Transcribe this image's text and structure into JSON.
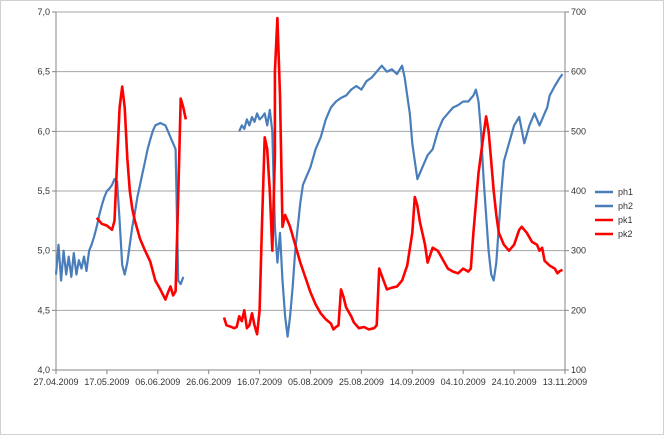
{
  "chart_data": {
    "type": "line",
    "title": "",
    "xlabel": "",
    "ylabel_left": "",
    "ylabel_right": "",
    "grid": "horizontal major gridlines",
    "legend_position": "right",
    "xlim": [
      "27.04.2009",
      "13.11.2009"
    ],
    "x_ticks": [
      "27.04.2009",
      "17.05.2009",
      "06.06.2009",
      "26.06.2009",
      "16.07.2009",
      "05.08.2009",
      "25.08.2009",
      "14.09.2009",
      "04.10.2009",
      "24.10.2009",
      "13.11.2009"
    ],
    "y_left": {
      "lim": [
        4.0,
        7.0
      ],
      "ticks": [
        "4,0",
        "4,5",
        "5,0",
        "5,5",
        "6,0",
        "6,5",
        "7,0"
      ]
    },
    "y_right": {
      "lim": [
        100,
        700
      ],
      "ticks": [
        "100",
        "200",
        "300",
        "400",
        "500",
        "600",
        "700"
      ]
    },
    "colors": {
      "ph": "#4a7ebb",
      "pk": "#ff0000",
      "grid": "#a6a6a6",
      "axis": "#868686"
    },
    "series": [
      {
        "name": "ph1",
        "axis": "left",
        "color": "#4a7ebb",
        "points": [
          [
            "27.04.2009",
            4.8
          ],
          [
            "28.04.2009",
            5.05
          ],
          [
            "29.04.2009",
            4.75
          ],
          [
            "30.04.2009",
            5.0
          ],
          [
            "01.05.2009",
            4.8
          ],
          [
            "02.05.2009",
            4.95
          ],
          [
            "03.05.2009",
            4.78
          ],
          [
            "04.05.2009",
            4.98
          ],
          [
            "05.05.2009",
            4.8
          ],
          [
            "06.05.2009",
            4.92
          ],
          [
            "07.05.2009",
            4.85
          ],
          [
            "08.05.2009",
            4.95
          ],
          [
            "09.05.2009",
            4.83
          ],
          [
            "10.05.2009",
            5.0
          ],
          [
            "11.05.2009",
            5.05
          ],
          [
            "12.05.2009",
            5.12
          ],
          [
            "13.05.2009",
            5.2
          ],
          [
            "14.05.2009",
            5.3
          ],
          [
            "15.05.2009",
            5.38
          ],
          [
            "16.05.2009",
            5.45
          ],
          [
            "17.05.2009",
            5.5
          ],
          [
            "18.05.2009",
            5.52
          ],
          [
            "19.05.2009",
            5.55
          ],
          [
            "20.05.2009",
            5.6
          ],
          [
            "21.05.2009",
            5.58
          ],
          [
            "22.05.2009",
            5.25
          ],
          [
            "23.05.2009",
            4.88
          ],
          [
            "24.05.2009",
            4.8
          ],
          [
            "25.05.2009",
            4.9
          ],
          [
            "26.05.2009",
            5.05
          ],
          [
            "27.05.2009",
            5.2
          ],
          [
            "28.05.2009",
            5.32
          ],
          [
            "29.05.2009",
            5.45
          ],
          [
            "30.05.2009",
            5.55
          ],
          [
            "31.05.2009",
            5.65
          ],
          [
            "01.06.2009",
            5.75
          ],
          [
            "02.06.2009",
            5.85
          ],
          [
            "03.06.2009",
            5.93
          ],
          [
            "04.06.2009",
            6.0
          ],
          [
            "05.06.2009",
            6.05
          ],
          [
            "07.06.2009",
            6.07
          ],
          [
            "09.06.2009",
            6.05
          ],
          [
            "10.06.2009",
            6.0
          ],
          [
            "11.06.2009",
            5.95
          ],
          [
            "12.06.2009",
            5.9
          ],
          [
            "13.06.2009",
            5.85
          ],
          [
            "14.06.2009",
            4.75
          ],
          [
            "15.06.2009",
            4.72
          ],
          [
            "16.06.2009",
            4.78
          ]
        ]
      },
      {
        "name": "ph2",
        "axis": "left",
        "color": "#4a7ebb",
        "points": [
          [
            "08.07.2009",
            6.0
          ],
          [
            "09.07.2009",
            6.05
          ],
          [
            "10.07.2009",
            6.02
          ],
          [
            "11.07.2009",
            6.1
          ],
          [
            "12.07.2009",
            6.05
          ],
          [
            "13.07.2009",
            6.12
          ],
          [
            "14.07.2009",
            6.08
          ],
          [
            "15.07.2009",
            6.15
          ],
          [
            "16.07.2009",
            6.1
          ],
          [
            "17.07.2009",
            6.12
          ],
          [
            "18.07.2009",
            6.15
          ],
          [
            "19.07.2009",
            6.05
          ],
          [
            "20.07.2009",
            6.18
          ],
          [
            "21.07.2009",
            6.0
          ],
          [
            "22.07.2009",
            5.2
          ],
          [
            "23.07.2009",
            4.9
          ],
          [
            "24.07.2009",
            5.15
          ],
          [
            "25.07.2009",
            4.75
          ],
          [
            "26.07.2009",
            4.45
          ],
          [
            "27.07.2009",
            4.28
          ],
          [
            "28.07.2009",
            4.45
          ],
          [
            "29.07.2009",
            4.7
          ],
          [
            "30.07.2009",
            5.0
          ],
          [
            "31.07.2009",
            5.2
          ],
          [
            "01.08.2009",
            5.4
          ],
          [
            "02.08.2009",
            5.55
          ],
          [
            "03.08.2009",
            5.6
          ],
          [
            "05.08.2009",
            5.7
          ],
          [
            "07.08.2009",
            5.85
          ],
          [
            "09.08.2009",
            5.95
          ],
          [
            "11.08.2009",
            6.1
          ],
          [
            "13.08.2009",
            6.2
          ],
          [
            "15.08.2009",
            6.25
          ],
          [
            "17.08.2009",
            6.28
          ],
          [
            "19.08.2009",
            6.3
          ],
          [
            "21.08.2009",
            6.35
          ],
          [
            "23.08.2009",
            6.38
          ],
          [
            "25.08.2009",
            6.35
          ],
          [
            "27.08.2009",
            6.42
          ],
          [
            "29.08.2009",
            6.45
          ],
          [
            "31.08.2009",
            6.5
          ],
          [
            "02.09.2009",
            6.55
          ],
          [
            "04.09.2009",
            6.5
          ],
          [
            "06.09.2009",
            6.52
          ],
          [
            "08.09.2009",
            6.48
          ],
          [
            "10.09.2009",
            6.55
          ],
          [
            "11.09.2009",
            6.45
          ],
          [
            "12.09.2009",
            6.3
          ],
          [
            "13.09.2009",
            6.15
          ],
          [
            "14.09.2009",
            5.9
          ],
          [
            "15.09.2009",
            5.75
          ],
          [
            "16.09.2009",
            5.6
          ],
          [
            "18.09.2009",
            5.7
          ],
          [
            "20.09.2009",
            5.8
          ],
          [
            "22.09.2009",
            5.85
          ],
          [
            "24.09.2009",
            6.0
          ],
          [
            "26.09.2009",
            6.1
          ],
          [
            "28.09.2009",
            6.15
          ],
          [
            "30.09.2009",
            6.2
          ],
          [
            "02.10.2009",
            6.22
          ],
          [
            "04.10.2009",
            6.25
          ],
          [
            "06.10.2009",
            6.25
          ],
          [
            "08.10.2009",
            6.3
          ],
          [
            "09.10.2009",
            6.35
          ],
          [
            "10.10.2009",
            6.25
          ],
          [
            "11.10.2009",
            6.0
          ],
          [
            "12.10.2009",
            5.6
          ],
          [
            "13.10.2009",
            5.3
          ],
          [
            "14.10.2009",
            5.0
          ],
          [
            "15.10.2009",
            4.8
          ],
          [
            "16.10.2009",
            4.75
          ],
          [
            "17.10.2009",
            4.9
          ],
          [
            "18.10.2009",
            5.2
          ],
          [
            "19.10.2009",
            5.5
          ],
          [
            "20.10.2009",
            5.75
          ],
          [
            "22.10.2009",
            5.9
          ],
          [
            "24.10.2009",
            6.05
          ],
          [
            "26.10.2009",
            6.12
          ],
          [
            "28.10.2009",
            5.9
          ],
          [
            "30.10.2009",
            6.05
          ],
          [
            "01.11.2009",
            6.15
          ],
          [
            "03.11.2009",
            6.05
          ],
          [
            "05.11.2009",
            6.15
          ],
          [
            "06.11.2009",
            6.2
          ],
          [
            "07.11.2009",
            6.3
          ],
          [
            "09.11.2009",
            6.38
          ],
          [
            "11.11.2009",
            6.45
          ],
          [
            "12.11.2009",
            6.48
          ]
        ]
      },
      {
        "name": "pk1",
        "axis": "right",
        "color": "#ff0000",
        "points": [
          [
            "13.05.2009",
            355
          ],
          [
            "15.05.2009",
            345
          ],
          [
            "17.05.2009",
            342
          ],
          [
            "19.05.2009",
            335
          ],
          [
            "20.05.2009",
            350
          ],
          [
            "21.05.2009",
            450
          ],
          [
            "22.05.2009",
            540
          ],
          [
            "23.05.2009",
            575
          ],
          [
            "24.05.2009",
            540
          ],
          [
            "25.05.2009",
            455
          ],
          [
            "26.05.2009",
            400
          ],
          [
            "27.05.2009",
            370
          ],
          [
            "28.05.2009",
            350
          ],
          [
            "30.05.2009",
            320
          ],
          [
            "01.06.2009",
            300
          ],
          [
            "03.06.2009",
            282
          ],
          [
            "05.06.2009",
            250
          ],
          [
            "07.06.2009",
            235
          ],
          [
            "09.06.2009",
            218
          ],
          [
            "10.06.2009",
            230
          ],
          [
            "11.06.2009",
            240
          ],
          [
            "12.06.2009",
            225
          ],
          [
            "13.06.2009",
            232
          ],
          [
            "14.06.2009",
            390
          ],
          [
            "15.06.2009",
            555
          ],
          [
            "16.06.2009",
            540
          ],
          [
            "17.06.2009",
            520
          ]
        ]
      },
      {
        "name": "pk2",
        "axis": "right",
        "color": "#ff0000",
        "points": [
          [
            "02.07.2009",
            188
          ],
          [
            "03.07.2009",
            175
          ],
          [
            "05.07.2009",
            172
          ],
          [
            "06.07.2009",
            170
          ],
          [
            "07.07.2009",
            172
          ],
          [
            "08.07.2009",
            190
          ],
          [
            "09.07.2009",
            182
          ],
          [
            "10.07.2009",
            200
          ],
          [
            "11.07.2009",
            170
          ],
          [
            "12.07.2009",
            175
          ],
          [
            "13.07.2009",
            195
          ],
          [
            "14.07.2009",
            175
          ],
          [
            "15.07.2009",
            160
          ],
          [
            "16.07.2009",
            200
          ],
          [
            "17.07.2009",
            350
          ],
          [
            "18.07.2009",
            490
          ],
          [
            "19.07.2009",
            470
          ],
          [
            "20.07.2009",
            400
          ],
          [
            "21.07.2009",
            300
          ],
          [
            "22.07.2009",
            460
          ],
          [
            "22.07.2009",
            600
          ],
          [
            "23.07.2009",
            690
          ],
          [
            "24.07.2009",
            560
          ],
          [
            "25.07.2009",
            340
          ],
          [
            "26.07.2009",
            360
          ],
          [
            "27.07.2009",
            350
          ],
          [
            "28.07.2009",
            340
          ],
          [
            "30.07.2009",
            310
          ],
          [
            "01.08.2009",
            280
          ],
          [
            "03.08.2009",
            255
          ],
          [
            "05.08.2009",
            230
          ],
          [
            "07.08.2009",
            210
          ],
          [
            "09.08.2009",
            195
          ],
          [
            "11.08.2009",
            185
          ],
          [
            "13.08.2009",
            178
          ],
          [
            "14.08.2009",
            168
          ],
          [
            "15.08.2009",
            172
          ],
          [
            "16.08.2009",
            175
          ],
          [
            "17.08.2009",
            235
          ],
          [
            "18.08.2009",
            222
          ],
          [
            "19.08.2009",
            205
          ],
          [
            "21.08.2009",
            190
          ],
          [
            "22.08.2009",
            180
          ],
          [
            "24.08.2009",
            170
          ],
          [
            "26.08.2009",
            172
          ],
          [
            "28.08.2009",
            168
          ],
          [
            "30.08.2009",
            170
          ],
          [
            "31.08.2009",
            175
          ],
          [
            "01.09.2009",
            270
          ],
          [
            "02.09.2009",
            258
          ],
          [
            "04.09.2009",
            235
          ],
          [
            "06.09.2009",
            238
          ],
          [
            "08.09.2009",
            240
          ],
          [
            "10.09.2009",
            250
          ],
          [
            "12.09.2009",
            275
          ],
          [
            "14.09.2009",
            330
          ],
          [
            "15.09.2009",
            390
          ],
          [
            "16.09.2009",
            375
          ],
          [
            "17.09.2009",
            348
          ],
          [
            "19.09.2009",
            310
          ],
          [
            "20.09.2009",
            280
          ],
          [
            "22.09.2009",
            305
          ],
          [
            "24.09.2009",
            300
          ],
          [
            "26.09.2009",
            285
          ],
          [
            "28.09.2009",
            270
          ],
          [
            "30.09.2009",
            265
          ],
          [
            "02.10.2009",
            262
          ],
          [
            "04.10.2009",
            270
          ],
          [
            "06.10.2009",
            265
          ],
          [
            "07.10.2009",
            270
          ],
          [
            "08.10.2009",
            330
          ],
          [
            "10.10.2009",
            430
          ],
          [
            "12.10.2009",
            495
          ],
          [
            "13.10.2009",
            525
          ],
          [
            "14.10.2009",
            500
          ],
          [
            "15.10.2009",
            450
          ],
          [
            "16.10.2009",
            400
          ],
          [
            "17.10.2009",
            360
          ],
          [
            "18.10.2009",
            330
          ],
          [
            "20.10.2009",
            310
          ],
          [
            "22.10.2009",
            300
          ],
          [
            "24.10.2009",
            310
          ],
          [
            "26.10.2009",
            335
          ],
          [
            "27.10.2009",
            340
          ],
          [
            "29.10.2009",
            330
          ],
          [
            "31.10.2009",
            315
          ],
          [
            "02.11.2009",
            310
          ],
          [
            "03.11.2009",
            300
          ],
          [
            "04.11.2009",
            305
          ],
          [
            "05.11.2009",
            283
          ],
          [
            "07.11.2009",
            275
          ],
          [
            "09.11.2009",
            270
          ],
          [
            "10.11.2009",
            262
          ],
          [
            "11.11.2009",
            266
          ],
          [
            "12.11.2009",
            268
          ]
        ]
      }
    ]
  }
}
